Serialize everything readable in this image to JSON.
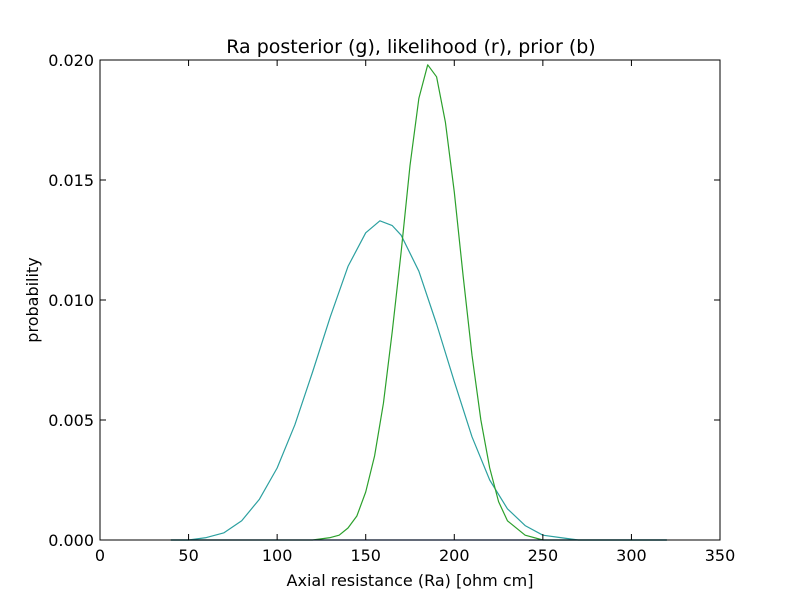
{
  "chart_data": {
    "type": "line",
    "title": "Ra posterior (g), likelihood (r), prior (b)",
    "xlabel": "Axial resistance (Ra) [ohm cm]",
    "ylabel": "probability",
    "xlim": [
      0,
      350
    ],
    "ylim": [
      0,
      0.02
    ],
    "xticks": [
      0,
      50,
      100,
      150,
      200,
      250,
      300,
      350
    ],
    "yticks": [
      0.0,
      0.005,
      0.01,
      0.015,
      0.02
    ],
    "xtick_labels": [
      "0",
      "50",
      "100",
      "150",
      "200",
      "250",
      "300",
      "350"
    ],
    "ytick_labels": [
      "0.000",
      "0.005",
      "0.010",
      "0.015",
      "0.020"
    ],
    "grid": false,
    "series": [
      {
        "color": "#2ca0a0",
        "x": [
          40,
          50,
          60,
          70,
          80,
          90,
          100,
          110,
          120,
          130,
          140,
          150,
          158,
          165,
          170,
          180,
          190,
          200,
          210,
          220,
          230,
          240,
          250,
          260,
          270,
          280,
          290,
          300,
          310,
          320
        ],
        "y": [
          0.0,
          0.0,
          0.0001,
          0.0003,
          0.0008,
          0.0017,
          0.003,
          0.0048,
          0.007,
          0.0093,
          0.0114,
          0.0128,
          0.0133,
          0.0131,
          0.0127,
          0.0112,
          0.009,
          0.0066,
          0.0043,
          0.0025,
          0.0013,
          0.0006,
          0.0002,
          0.0001,
          0.0,
          0.0,
          0.0,
          0.0,
          0.0,
          0.0
        ]
      },
      {
        "color": "#2ca02c",
        "x": [
          40,
          120,
          130,
          135,
          140,
          145,
          150,
          155,
          160,
          165,
          170,
          175,
          180,
          185,
          190,
          195,
          200,
          205,
          210,
          215,
          220,
          225,
          230,
          240,
          250,
          260,
          280,
          320
        ],
        "y": [
          0.0,
          0.0,
          0.0001,
          0.0002,
          0.0005,
          0.001,
          0.002,
          0.0035,
          0.0057,
          0.0087,
          0.012,
          0.0156,
          0.0184,
          0.0198,
          0.0193,
          0.0174,
          0.0145,
          0.011,
          0.0077,
          0.005,
          0.003,
          0.0016,
          0.0008,
          0.0002,
          0.0,
          0.0,
          0.0,
          0.0
        ]
      },
      {
        "color": "#1f4fbf",
        "x": [
          40,
          320
        ],
        "y": [
          0.0,
          0.0
        ]
      }
    ]
  }
}
